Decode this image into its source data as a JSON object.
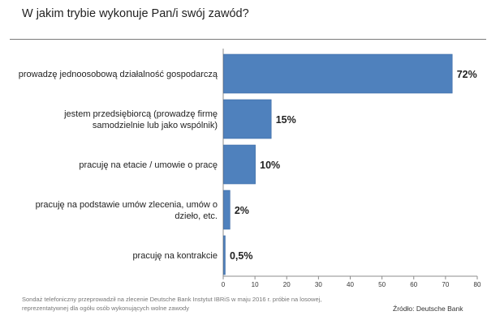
{
  "header": {
    "title": "W jakim trybie wykonuje Pan/i swój zawód?"
  },
  "footer": {
    "note_lines": [
      "Sondaż telefoniczny przeprowadził na zlecenie Deutsche Bank  Instytut IBRiS w maju 2016 r. próbie na losowej,",
      "reprezentatywnej dla ogółu osób wykonujących wolne zawody"
    ],
    "source": "Źródło: Deutsche Bank"
  },
  "chart_data": {
    "type": "bar",
    "orientation": "horizontal",
    "categories": [
      [
        "prowadzę jednoosobową działalność gospodarczą"
      ],
      [
        "jestem przedsiębiorcą (prowadzę firmę",
        "samodzielnie lub jako wspólnik)"
      ],
      [
        "pracuję na etacie / umowie o pracę"
      ],
      [
        "pracuję na podstawie umów zlecenia, umów o",
        "dzieło, etc."
      ],
      [
        "pracuję na kontrakcie"
      ]
    ],
    "values": [
      72,
      15,
      10,
      2,
      0.5
    ],
    "value_labels": [
      "72%",
      "15%",
      "10%",
      "2%",
      "0,5%"
    ],
    "xlim": [
      0,
      80
    ],
    "x_ticks": [
      0,
      10,
      20,
      30,
      40,
      50,
      60,
      70,
      80
    ],
    "grid": false,
    "legend": "none",
    "bar_color": "#4f81bd",
    "bar_edge_color": "#3a6aa4"
  }
}
